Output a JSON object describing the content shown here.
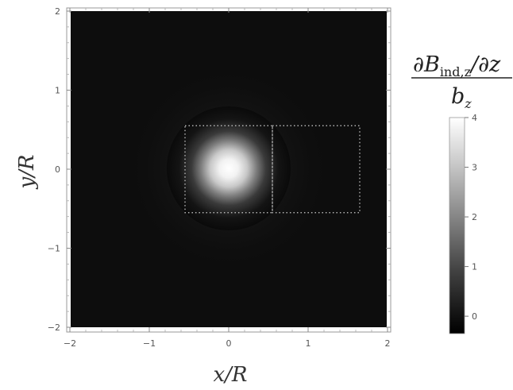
{
  "chart_data": {
    "type": "heatmap",
    "xlabel": "x/R",
    "ylabel": "y/R",
    "xlim": [
      -2,
      2
    ],
    "ylim": [
      -2,
      2
    ],
    "xticks": [
      "−2",
      "−1",
      "0",
      "1",
      "2"
    ],
    "yticks": [
      "−2",
      "−1",
      "0",
      "1",
      "2"
    ],
    "colorscale": "grayscale",
    "colorbar": {
      "label_numerator": "∂B",
      "label_numerator_sub": "ind,z",
      "label_numerator_tail": "/∂z",
      "label_denominator": "b",
      "label_denominator_sub": "z",
      "range": [
        -0.35,
        4
      ],
      "ticks": [
        "0",
        "1",
        "2",
        "3",
        "4"
      ]
    },
    "field": {
      "description_values": "Gaussian-like peak centered at origin on a near-zero background",
      "peak_center": [
        0,
        0
      ],
      "peak_value": 4,
      "peak_width": 0.25,
      "background_value": -0.2
    },
    "annotations": {
      "dotted_boxes": [
        {
          "x_range": [
            -0.55,
            0.55
          ],
          "y_range": [
            -0.55,
            0.55
          ]
        },
        {
          "x_range": [
            0.55,
            1.65
          ],
          "y_range": [
            -0.55,
            0.55
          ]
        }
      ]
    },
    "grid": false
  }
}
